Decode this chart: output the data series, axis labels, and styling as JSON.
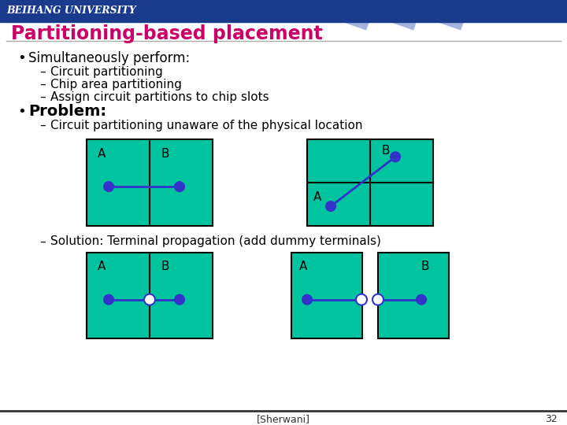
{
  "bg_color": "#f0f0f0",
  "header_bg": "#1a3a8c",
  "header_text": "BEIHANG UNIVERSITY",
  "header_text_color": "#ffffff",
  "title": "Partitioning-based placement",
  "title_color": "#cc0066",
  "slide_bg": "#e8e8e8",
  "content_bg": "#ffffff",
  "teal": "#00c4a0",
  "teal_dark": "#00b090",
  "line_color": "#3333cc",
  "node_fill": "#3333cc",
  "node_edge": "#3333cc",
  "dummy_fill": "#ffffff",
  "footer_text": "[Sherwani]",
  "page_num": "32",
  "bullet1": "Simultaneously perform:",
  "sub1a": "Circuit partitioning",
  "sub1b": "Chip area partitioning",
  "sub1c": "Assign circuit partitions to chip slots",
  "bullet2": "Problem:",
  "sub2a": "Circuit partitioning unaware of the physical location",
  "sub3a": "Solution: Terminal propagation (add dummy terminals)"
}
